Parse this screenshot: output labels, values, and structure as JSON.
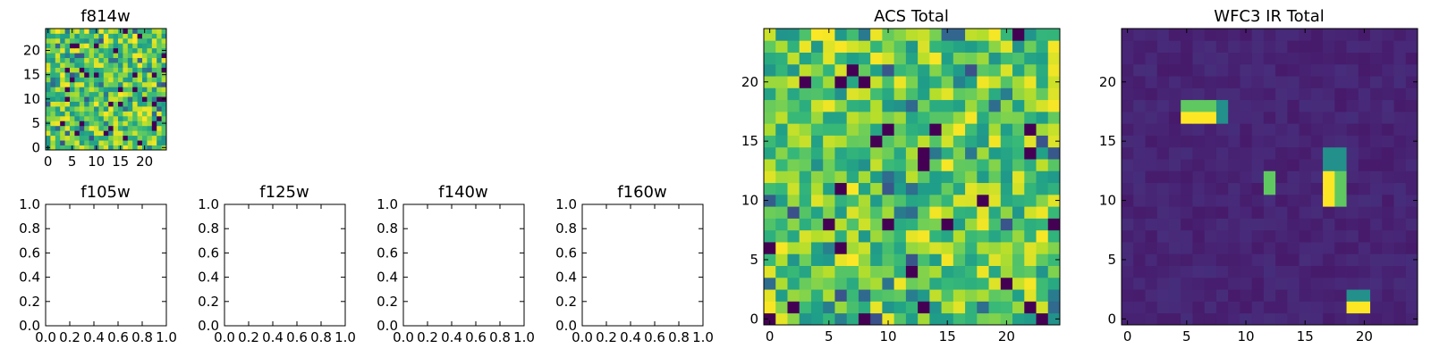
{
  "chart_data": [
    {
      "type": "heatmap",
      "title": "f814w",
      "grid": [
        25,
        25
      ],
      "seed": 814,
      "colormap": "viridis",
      "style": "noise",
      "x_ticks": [
        0,
        5,
        10,
        15,
        20
      ],
      "y_ticks": [
        0,
        5,
        10,
        15,
        20
      ],
      "xlim": [
        -0.5,
        24.5
      ],
      "ylim": [
        -0.5,
        24.5
      ]
    },
    {
      "type": "empty",
      "title": "f105w",
      "x_ticks": [
        "0.0",
        "0.2",
        "0.4",
        "0.6",
        "0.8",
        "1.0"
      ],
      "y_ticks": [
        "0.0",
        "0.2",
        "0.4",
        "0.6",
        "0.8",
        "1.0"
      ],
      "xlim": [
        0,
        1
      ],
      "ylim": [
        0,
        1
      ]
    },
    {
      "type": "empty",
      "title": "f125w",
      "x_ticks": [
        "0.0",
        "0.2",
        "0.4",
        "0.6",
        "0.8",
        "1.0"
      ],
      "y_ticks": [
        "0.0",
        "0.2",
        "0.4",
        "0.6",
        "0.8",
        "1.0"
      ],
      "xlim": [
        0,
        1
      ],
      "ylim": [
        0,
        1
      ]
    },
    {
      "type": "empty",
      "title": "f140w",
      "x_ticks": [
        "0.0",
        "0.2",
        "0.4",
        "0.6",
        "0.8",
        "1.0"
      ],
      "y_ticks": [
        "0.0",
        "0.2",
        "0.4",
        "0.6",
        "0.8",
        "1.0"
      ],
      "xlim": [
        0,
        1
      ],
      "ylim": [
        0,
        1
      ]
    },
    {
      "type": "empty",
      "title": "f160w",
      "x_ticks": [
        "0.0",
        "0.2",
        "0.4",
        "0.6",
        "0.8",
        "1.0"
      ],
      "y_ticks": [
        "0.0",
        "0.2",
        "0.4",
        "0.6",
        "0.8",
        "1.0"
      ],
      "xlim": [
        0,
        1
      ],
      "ylim": [
        0,
        1
      ]
    },
    {
      "type": "heatmap",
      "title": "ACS Total",
      "grid": [
        25,
        25
      ],
      "seed": 2020,
      "colormap": "viridis",
      "style": "noise",
      "x_ticks": [
        0,
        5,
        10,
        15,
        20
      ],
      "y_ticks": [
        0,
        5,
        10,
        15,
        20
      ],
      "xlim": [
        -0.5,
        24.5
      ],
      "ylim": [
        -0.5,
        24.5
      ]
    },
    {
      "type": "heatmap",
      "title": "WFC3 IR Total",
      "grid": [
        25,
        25
      ],
      "seed": 3011,
      "colormap": "viridis",
      "style": "sources",
      "background_level": 0.07,
      "sources": [
        {
          "x": 5,
          "y": 17,
          "value": 1.0
        },
        {
          "x": 6,
          "y": 17,
          "value": 1.0
        },
        {
          "x": 7,
          "y": 17,
          "value": 1.0
        },
        {
          "x": 5,
          "y": 18,
          "value": 0.75
        },
        {
          "x": 6,
          "y": 18,
          "value": 0.75
        },
        {
          "x": 7,
          "y": 18,
          "value": 0.75
        },
        {
          "x": 8,
          "y": 17,
          "value": 0.5
        },
        {
          "x": 8,
          "y": 18,
          "value": 0.5
        },
        {
          "x": 12,
          "y": 11,
          "value": 0.75
        },
        {
          "x": 12,
          "y": 12,
          "value": 0.75
        },
        {
          "x": 17,
          "y": 10,
          "value": 1.0
        },
        {
          "x": 17,
          "y": 11,
          "value": 1.0
        },
        {
          "x": 17,
          "y": 12,
          "value": 1.0
        },
        {
          "x": 18,
          "y": 10,
          "value": 0.75
        },
        {
          "x": 18,
          "y": 11,
          "value": 0.75
        },
        {
          "x": 18,
          "y": 12,
          "value": 0.75
        },
        {
          "x": 17,
          "y": 13,
          "value": 0.5
        },
        {
          "x": 18,
          "y": 13,
          "value": 0.5
        },
        {
          "x": 17,
          "y": 14,
          "value": 0.5
        },
        {
          "x": 18,
          "y": 14,
          "value": 0.5
        },
        {
          "x": 19,
          "y": 1,
          "value": 1.0
        },
        {
          "x": 20,
          "y": 1,
          "value": 1.0
        },
        {
          "x": 19,
          "y": 2,
          "value": 0.5
        },
        {
          "x": 20,
          "y": 2,
          "value": 0.5
        }
      ],
      "x_ticks": [
        0,
        5,
        10,
        15,
        20
      ],
      "y_ticks": [
        0,
        5,
        10,
        15,
        20
      ],
      "xlim": [
        -0.5,
        24.5
      ],
      "ylim": [
        -0.5,
        24.5
      ]
    }
  ]
}
